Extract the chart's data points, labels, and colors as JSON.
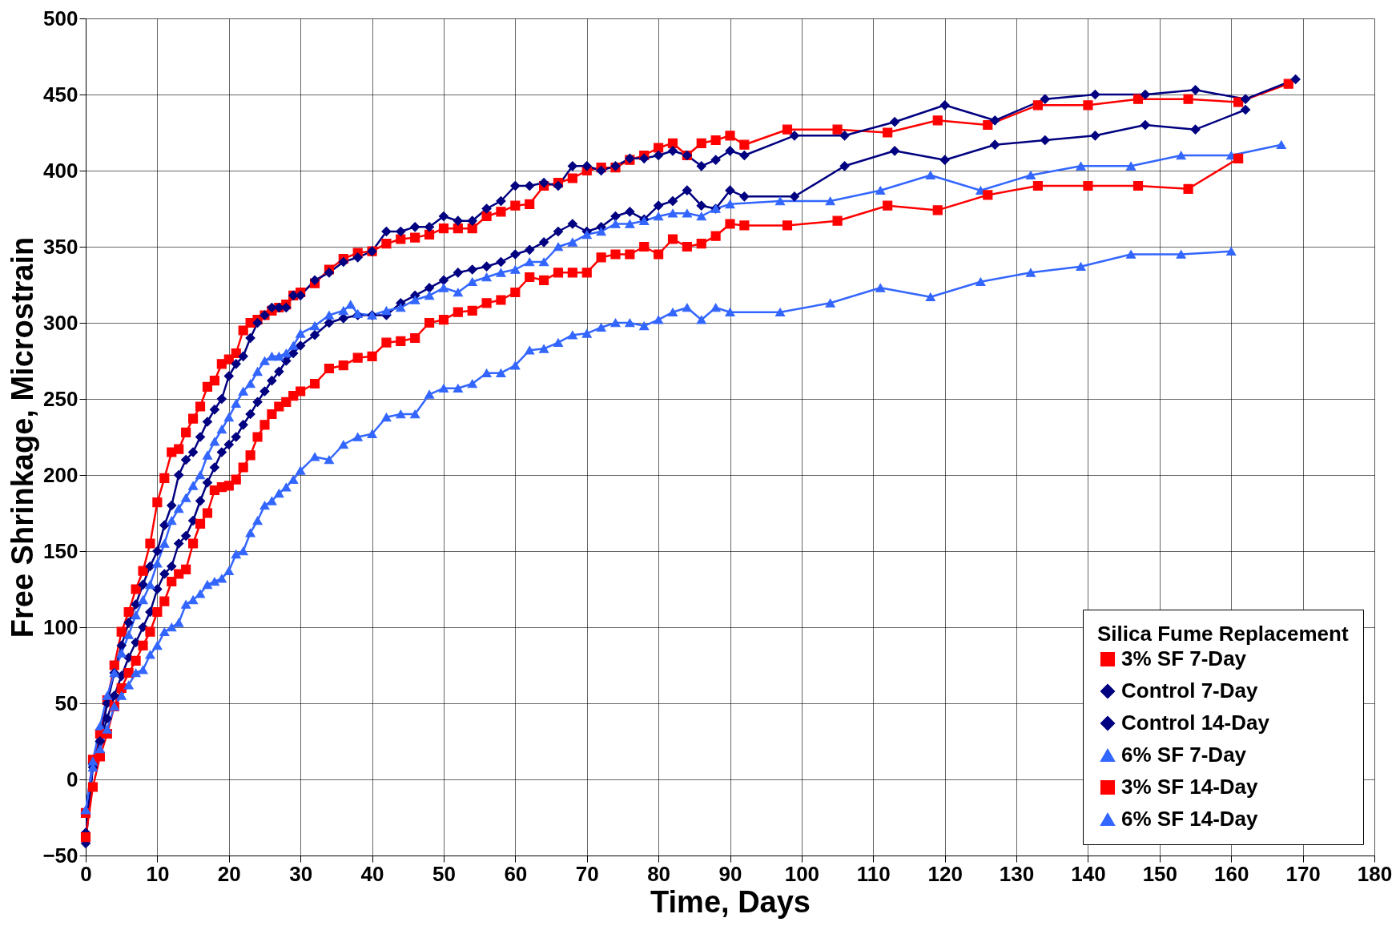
{
  "chart_data": {
    "type": "line",
    "xlabel": "Time, Days",
    "ylabel": "Free Shrinkage, Microstrain",
    "legend_title": "Silica Fume Replacement",
    "xlim": [
      0,
      180
    ],
    "xticks": [
      0,
      10,
      20,
      30,
      40,
      50,
      60,
      70,
      80,
      90,
      100,
      110,
      120,
      130,
      140,
      150,
      160,
      170,
      180
    ],
    "ylim": [
      -50,
      500
    ],
    "yticks": [
      -50,
      0,
      50,
      100,
      150,
      200,
      250,
      300,
      350,
      400,
      450,
      500
    ],
    "grid": true,
    "legend": "bottom right",
    "series": [
      {
        "name": "3% SF 7-Day",
        "color": "#ff0000",
        "marker": "square",
        "x": [
          0,
          1,
          2,
          3,
          4,
          5,
          6,
          7,
          8,
          9,
          10,
          11,
          12,
          13,
          14,
          15,
          16,
          17,
          18,
          19,
          20,
          21,
          22,
          23,
          24,
          25,
          26,
          27,
          28,
          29,
          30,
          32,
          34,
          36,
          38,
          40,
          42,
          44,
          46,
          48,
          50,
          52,
          54,
          56,
          58,
          60,
          62,
          64,
          66,
          68,
          70,
          72,
          74,
          76,
          78,
          80,
          82,
          84,
          86,
          88,
          90,
          92,
          98,
          105,
          112,
          119,
          126,
          133,
          140,
          147,
          154,
          161,
          168
        ],
        "values": [
          -22,
          13,
          30,
          52,
          75,
          97,
          110,
          125,
          137,
          155,
          182,
          198,
          215,
          217,
          228,
          237,
          245,
          258,
          262,
          273,
          276,
          280,
          295,
          300,
          302,
          305,
          308,
          310,
          312,
          318,
          320,
          326,
          335,
          342,
          346,
          347,
          352,
          355,
          356,
          358,
          362,
          362,
          362,
          370,
          373,
          377,
          378,
          390,
          392,
          395,
          400,
          402,
          402,
          407,
          410,
          415,
          418,
          410,
          418,
          420,
          423,
          417,
          427,
          427,
          425,
          433,
          430,
          443,
          443,
          447,
          447,
          445,
          457
        ]
      },
      {
        "name": "Control 7-Day",
        "color": "#000080",
        "marker": "diamond",
        "x": [
          0,
          1,
          2,
          3,
          4,
          5,
          6,
          7,
          8,
          9,
          10,
          11,
          12,
          13,
          14,
          15,
          16,
          17,
          18,
          19,
          20,
          21,
          22,
          23,
          24,
          25,
          26,
          27,
          28,
          29,
          30,
          32,
          34,
          36,
          38,
          40,
          42,
          44,
          46,
          48,
          50,
          52,
          54,
          56,
          58,
          60,
          62,
          64,
          66,
          68,
          70,
          72,
          74,
          76,
          78,
          80,
          82,
          84,
          86,
          88,
          90,
          92,
          99,
          106,
          113,
          120,
          127,
          134,
          141,
          148,
          155,
          162,
          169
        ],
        "values": [
          -42,
          8,
          25,
          50,
          70,
          88,
          103,
          115,
          128,
          140,
          150,
          167,
          180,
          200,
          210,
          215,
          225,
          235,
          243,
          250,
          265,
          273,
          278,
          290,
          300,
          305,
          310,
          310,
          310,
          318,
          318,
          328,
          333,
          340,
          343,
          347,
          360,
          360,
          363,
          363,
          370,
          367,
          367,
          375,
          380,
          390,
          390,
          392,
          390,
          403,
          403,
          400,
          403,
          408,
          408,
          410,
          413,
          410,
          403,
          407,
          413,
          410,
          423,
          423,
          432,
          443,
          433,
          447,
          450,
          450,
          453,
          447,
          460
        ]
      },
      {
        "name": "Control 14-Day",
        "color": "#000080",
        "marker": "diamond",
        "x": [
          0,
          1,
          2,
          3,
          4,
          5,
          6,
          7,
          8,
          9,
          10,
          11,
          12,
          13,
          14,
          15,
          16,
          17,
          18,
          19,
          20,
          21,
          22,
          23,
          24,
          25,
          26,
          27,
          28,
          29,
          30,
          32,
          34,
          36,
          38,
          40,
          42,
          44,
          46,
          48,
          50,
          52,
          54,
          56,
          58,
          60,
          62,
          64,
          66,
          68,
          70,
          72,
          74,
          76,
          78,
          80,
          82,
          84,
          86,
          88,
          90,
          92,
          99,
          106,
          113,
          120,
          127,
          134,
          141,
          148,
          155,
          162
        ],
        "values": [
          -35,
          10,
          25,
          40,
          55,
          68,
          80,
          90,
          100,
          110,
          125,
          135,
          140,
          155,
          160,
          170,
          183,
          195,
          205,
          215,
          220,
          225,
          233,
          240,
          248,
          255,
          262,
          268,
          275,
          280,
          285,
          292,
          300,
          303,
          305,
          305,
          305,
          313,
          318,
          323,
          328,
          333,
          335,
          337,
          340,
          345,
          348,
          353,
          360,
          365,
          360,
          363,
          370,
          373,
          368,
          377,
          380,
          387,
          377,
          375,
          387,
          383,
          383,
          403,
          413,
          407,
          417,
          420,
          423,
          430,
          427,
          440
        ]
      },
      {
        "name": "6% SF 7-Day",
        "color": "#3366ff",
        "marker": "triangle",
        "x": [
          0,
          1,
          2,
          3,
          4,
          5,
          6,
          7,
          8,
          9,
          10,
          11,
          12,
          13,
          14,
          15,
          16,
          17,
          18,
          19,
          20,
          21,
          22,
          23,
          24,
          25,
          26,
          27,
          28,
          29,
          30,
          32,
          34,
          36,
          37,
          38,
          40,
          42,
          44,
          46,
          48,
          50,
          52,
          54,
          56,
          58,
          60,
          62,
          64,
          66,
          68,
          70,
          72,
          74,
          76,
          78,
          80,
          82,
          84,
          86,
          88,
          90,
          97,
          104,
          111,
          118,
          125,
          132,
          139,
          146,
          153,
          160,
          167
        ],
        "values": [
          -20,
          12,
          35,
          55,
          70,
          83,
          95,
          108,
          118,
          128,
          142,
          155,
          170,
          178,
          185,
          193,
          200,
          213,
          222,
          230,
          238,
          247,
          255,
          260,
          268,
          275,
          278,
          278,
          280,
          285,
          293,
          298,
          305,
          308,
          312,
          306,
          305,
          308,
          310,
          315,
          318,
          323,
          320,
          327,
          330,
          333,
          335,
          340,
          340,
          350,
          353,
          358,
          360,
          365,
          365,
          367,
          370,
          372,
          372,
          370,
          375,
          378,
          380,
          380,
          387,
          397,
          387,
          397,
          403,
          403,
          410,
          410,
          417
        ]
      },
      {
        "name": "3% SF 14-Day",
        "color": "#ff0000",
        "marker": "square",
        "x": [
          0,
          1,
          2,
          3,
          4,
          5,
          6,
          7,
          8,
          9,
          10,
          11,
          12,
          13,
          14,
          15,
          16,
          17,
          18,
          19,
          20,
          21,
          22,
          23,
          24,
          25,
          26,
          27,
          28,
          29,
          30,
          32,
          34,
          36,
          38,
          40,
          42,
          44,
          46,
          48,
          50,
          52,
          54,
          56,
          58,
          60,
          62,
          64,
          66,
          68,
          70,
          72,
          74,
          76,
          78,
          80,
          82,
          84,
          86,
          88,
          90,
          92,
          98,
          105,
          112,
          119,
          126,
          133,
          140,
          147,
          154,
          161
        ],
        "values": [
          -38,
          -5,
          15,
          30,
          48,
          60,
          70,
          78,
          88,
          97,
          110,
          117,
          130,
          135,
          138,
          155,
          168,
          175,
          190,
          192,
          193,
          197,
          205,
          213,
          225,
          233,
          240,
          245,
          248,
          252,
          255,
          260,
          270,
          272,
          277,
          278,
          287,
          288,
          290,
          300,
          302,
          307,
          308,
          313,
          315,
          320,
          330,
          328,
          333,
          333,
          333,
          343,
          345,
          345,
          350,
          345,
          355,
          350,
          352,
          357,
          365,
          364,
          364,
          367,
          377,
          374,
          384,
          390,
          390,
          390,
          388,
          408
        ]
      },
      {
        "name": "6% SF 14-Day",
        "color": "#3366ff",
        "marker": "triangle",
        "x": [
          0,
          1,
          2,
          3,
          4,
          5,
          6,
          7,
          8,
          9,
          10,
          11,
          12,
          13,
          14,
          15,
          16,
          17,
          18,
          19,
          20,
          21,
          22,
          23,
          24,
          25,
          26,
          27,
          28,
          29,
          30,
          32,
          34,
          36,
          38,
          40,
          42,
          44,
          46,
          48,
          50,
          52,
          54,
          56,
          58,
          60,
          62,
          64,
          66,
          68,
          70,
          72,
          74,
          76,
          78,
          80,
          82,
          84,
          86,
          88,
          90,
          97,
          104,
          111,
          118,
          125,
          132,
          139,
          146,
          153,
          160
        ],
        "values": [
          -20,
          8,
          20,
          33,
          48,
          55,
          62,
          70,
          72,
          82,
          88,
          97,
          100,
          103,
          115,
          118,
          122,
          128,
          130,
          132,
          137,
          148,
          150,
          162,
          170,
          180,
          183,
          188,
          192,
          197,
          203,
          212,
          210,
          220,
          225,
          227,
          238,
          240,
          240,
          253,
          257,
          257,
          260,
          267,
          267,
          272,
          282,
          283,
          287,
          292,
          293,
          297,
          300,
          300,
          298,
          302,
          307,
          310,
          302,
          310,
          307,
          307,
          313,
          323,
          317,
          327,
          333,
          337,
          345,
          345,
          347
        ]
      }
    ]
  }
}
